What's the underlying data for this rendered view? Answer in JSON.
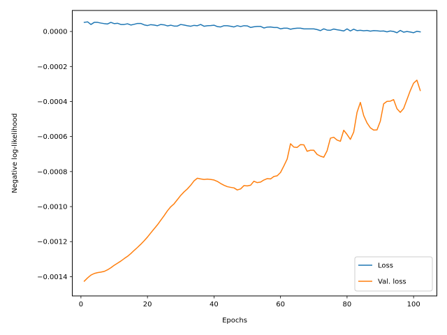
{
  "chart_data": {
    "type": "line",
    "title": "",
    "xlabel": "Epochs",
    "ylabel": "Negative log-likelihood",
    "xlim": [
      -2.6,
      107.0
    ],
    "ylim": [
      -0.00151,
      0.00012
    ],
    "xticks": [
      0,
      20,
      40,
      60,
      80,
      100
    ],
    "xtick_labels": [
      "0",
      "20",
      "40",
      "60",
      "80",
      "100"
    ],
    "yticks": [
      -0.0014,
      -0.0012,
      -0.001,
      -0.0008,
      -0.0006,
      -0.0004,
      -0.0002,
      0.0
    ],
    "ytick_labels": [
      "−0.0014",
      "−0.0012",
      "−0.0010",
      "−0.0008",
      "−0.0006",
      "−0.0004",
      "−0.0002",
      "0.0000"
    ],
    "grid": false,
    "legend_position": "lower-right",
    "series": [
      {
        "name": "Loss",
        "color": "#1f77b4",
        "points": [
          [
            1,
            5.2e-05
          ],
          [
            2,
            5.5e-05
          ],
          [
            3,
            4e-05
          ],
          [
            4,
            5.2e-05
          ],
          [
            5,
            5.2e-05
          ],
          [
            6,
            4.8e-05
          ],
          [
            7,
            4.5e-05
          ],
          [
            8,
            4.3e-05
          ],
          [
            9,
            5.2e-05
          ],
          [
            10,
            4.5e-05
          ],
          [
            11,
            4.7e-05
          ],
          [
            12,
            4e-05
          ],
          [
            13,
            4e-05
          ],
          [
            14,
            4.4e-05
          ],
          [
            15,
            3.7e-05
          ],
          [
            16,
            4.1e-05
          ],
          [
            17,
            4.6e-05
          ],
          [
            18,
            4.6e-05
          ],
          [
            19,
            3.8e-05
          ],
          [
            20,
            3.4e-05
          ],
          [
            21,
            3.9e-05
          ],
          [
            22,
            3.7e-05
          ],
          [
            23,
            3.3e-05
          ],
          [
            24,
            4e-05
          ],
          [
            25,
            3.8e-05
          ],
          [
            26,
            3.2e-05
          ],
          [
            27,
            3.6e-05
          ],
          [
            28,
            3.1e-05
          ],
          [
            29,
            3.1e-05
          ],
          [
            30,
            4e-05
          ],
          [
            31,
            3.7e-05
          ],
          [
            32,
            3.3e-05
          ],
          [
            33,
            3e-05
          ],
          [
            34,
            3.5e-05
          ],
          [
            35,
            3.3e-05
          ],
          [
            36,
            4e-05
          ],
          [
            37,
            3e-05
          ],
          [
            38,
            3.3e-05
          ],
          [
            39,
            3.4e-05
          ],
          [
            40,
            3.6e-05
          ],
          [
            41,
            2.8e-05
          ],
          [
            42,
            2.6e-05
          ],
          [
            43,
            3.3e-05
          ],
          [
            44,
            3.3e-05
          ],
          [
            45,
            3e-05
          ],
          [
            46,
            2.6e-05
          ],
          [
            47,
            3.3e-05
          ],
          [
            48,
            2.8e-05
          ],
          [
            49,
            3.3e-05
          ],
          [
            50,
            3.2e-05
          ],
          [
            51,
            2.3e-05
          ],
          [
            52,
            2.7e-05
          ],
          [
            53,
            2.9e-05
          ],
          [
            54,
            2.9e-05
          ],
          [
            55,
            2e-05
          ],
          [
            56,
            2.5e-05
          ],
          [
            57,
            2.6e-05
          ],
          [
            58,
            2.3e-05
          ],
          [
            59,
            2.3e-05
          ],
          [
            60,
            1.5e-05
          ],
          [
            61,
            1.9e-05
          ],
          [
            62,
            1.9e-05
          ],
          [
            63,
            1.3e-05
          ],
          [
            64,
            1.7e-05
          ],
          [
            65,
            1.9e-05
          ],
          [
            66,
            1.9e-05
          ],
          [
            67,
            1.5e-05
          ],
          [
            68,
            1.5e-05
          ],
          [
            69,
            1.5e-05
          ],
          [
            70,
            1.5e-05
          ],
          [
            71,
            1.1e-05
          ],
          [
            72,
            5e-06
          ],
          [
            73,
            1.5e-05
          ],
          [
            74,
            8e-06
          ],
          [
            75,
            7e-06
          ],
          [
            76,
            1.4e-05
          ],
          [
            77,
            1e-05
          ],
          [
            78,
            7e-06
          ],
          [
            79,
            3e-06
          ],
          [
            80,
            1.5e-05
          ],
          [
            81,
            3e-06
          ],
          [
            82,
            1.3e-05
          ],
          [
            83,
            5e-06
          ],
          [
            84,
            7e-06
          ],
          [
            85,
            4e-06
          ],
          [
            86,
            6e-06
          ],
          [
            87,
            2e-06
          ],
          [
            88,
            5e-06
          ],
          [
            89,
            4e-06
          ],
          [
            90,
            2e-06
          ],
          [
            91,
            3e-06
          ],
          [
            92,
            -2e-06
          ],
          [
            93,
            3e-06
          ],
          [
            94,
            0.0
          ],
          [
            95,
            -7e-06
          ],
          [
            96,
            6e-06
          ],
          [
            97,
            -4e-06
          ],
          [
            98,
            0.0
          ],
          [
            99,
            -3e-06
          ],
          [
            100,
            -7e-06
          ],
          [
            101,
            1e-06
          ],
          [
            102,
            -2e-06
          ]
        ]
      },
      {
        "name": "Val. loss",
        "color": "#ff7f0e",
        "points": [
          [
            1,
            -0.001426
          ],
          [
            2,
            -0.001407
          ],
          [
            3,
            -0.001391
          ],
          [
            4,
            -0.001382
          ],
          [
            5,
            -0.001377
          ],
          [
            6,
            -0.001374
          ],
          [
            7,
            -0.00137
          ],
          [
            8,
            -0.001361
          ],
          [
            9,
            -0.001349
          ],
          [
            10,
            -0.001335
          ],
          [
            11,
            -0.001323
          ],
          [
            12,
            -0.001311
          ],
          [
            13,
            -0.001297
          ],
          [
            14,
            -0.001284
          ],
          [
            15,
            -0.001268
          ],
          [
            16,
            -0.00125
          ],
          [
            17,
            -0.001233
          ],
          [
            18,
            -0.001215
          ],
          [
            19,
            -0.001195
          ],
          [
            20,
            -0.001174
          ],
          [
            21,
            -0.00115
          ],
          [
            22,
            -0.001127
          ],
          [
            23,
            -0.001104
          ],
          [
            24,
            -0.001078
          ],
          [
            25,
            -0.001052
          ],
          [
            26,
            -0.001024
          ],
          [
            27,
            -0.001001
          ],
          [
            28,
            -0.000984
          ],
          [
            29,
            -0.00096
          ],
          [
            30,
            -0.000936
          ],
          [
            31,
            -0.000916
          ],
          [
            32,
            -0.000899
          ],
          [
            33,
            -0.000878
          ],
          [
            34,
            -0.000853
          ],
          [
            35,
            -0.000838
          ],
          [
            36,
            -0.000842
          ],
          [
            37,
            -0.000845
          ],
          [
            38,
            -0.000843
          ],
          [
            39,
            -0.000845
          ],
          [
            40,
            -0.000848
          ],
          [
            41,
            -0.000856
          ],
          [
            42,
            -0.000868
          ],
          [
            43,
            -0.000878
          ],
          [
            44,
            -0.000886
          ],
          [
            45,
            -0.00089
          ],
          [
            46,
            -0.000893
          ],
          [
            47,
            -0.000905
          ],
          [
            48,
            -0.000899
          ],
          [
            49,
            -0.00088
          ],
          [
            50,
            -0.000882
          ],
          [
            51,
            -0.000878
          ],
          [
            52,
            -0.000855
          ],
          [
            53,
            -0.000863
          ],
          [
            54,
            -0.00086
          ],
          [
            55,
            -0.000848
          ],
          [
            56,
            -0.00084
          ],
          [
            57,
            -0.000842
          ],
          [
            58,
            -0.000828
          ],
          [
            59,
            -0.000824
          ],
          [
            60,
            -0.000805
          ],
          [
            61,
            -0.000768
          ],
          [
            62,
            -0.000728
          ],
          [
            63,
            -0.000641
          ],
          [
            64,
            -0.00066
          ],
          [
            65,
            -0.000662
          ],
          [
            66,
            -0.000646
          ],
          [
            67,
            -0.000647
          ],
          [
            68,
            -0.000684
          ],
          [
            69,
            -0.000678
          ],
          [
            70,
            -0.000678
          ],
          [
            71,
            -0.000702
          ],
          [
            72,
            -0.000712
          ],
          [
            73,
            -0.000718
          ],
          [
            74,
            -0.000681
          ],
          [
            75,
            -0.000609
          ],
          [
            76,
            -0.000604
          ],
          [
            77,
            -0.00062
          ],
          [
            78,
            -0.000627
          ],
          [
            79,
            -0.000564
          ],
          [
            80,
            -0.000588
          ],
          [
            81,
            -0.000616
          ],
          [
            82,
            -0.000574
          ],
          [
            83,
            -0.000462
          ],
          [
            84,
            -0.000405
          ],
          [
            85,
            -0.00048
          ],
          [
            86,
            -0.000522
          ],
          [
            87,
            -0.00055
          ],
          [
            88,
            -0.000563
          ],
          [
            89,
            -0.000562
          ],
          [
            90,
            -0.000512
          ],
          [
            91,
            -0.000413
          ],
          [
            92,
            -0.000399
          ],
          [
            93,
            -0.000398
          ],
          [
            94,
            -0.000389
          ],
          [
            95,
            -0.000441
          ],
          [
            96,
            -0.000462
          ],
          [
            97,
            -0.00044
          ],
          [
            98,
            -0.000389
          ],
          [
            99,
            -0.000338
          ],
          [
            100,
            -0.000295
          ],
          [
            101,
            -0.000278
          ],
          [
            102,
            -0.000337
          ]
        ]
      }
    ]
  }
}
